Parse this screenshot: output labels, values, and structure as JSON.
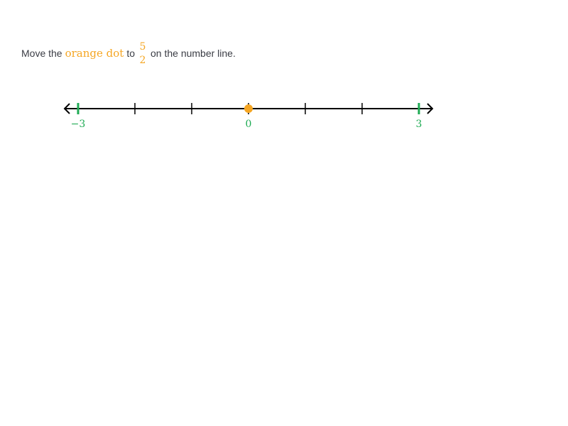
{
  "prompt": {
    "before": "Move the",
    "highlight": "orange dot",
    "middle": "to",
    "fraction": {
      "numerator": "5",
      "denominator": "2"
    },
    "after": "on the number line."
  },
  "number_line": {
    "min": -3,
    "max": 3,
    "tick_step": 1,
    "labels": [
      {
        "value": -3,
        "text": "−3"
      },
      {
        "value": 0,
        "text": "0"
      },
      {
        "value": 3,
        "text": "3"
      }
    ],
    "dot_value": 0
  },
  "colors": {
    "highlight": "#f5a623",
    "label_green": "#1fab54",
    "text": "#3b3d45",
    "line": "#000000"
  }
}
